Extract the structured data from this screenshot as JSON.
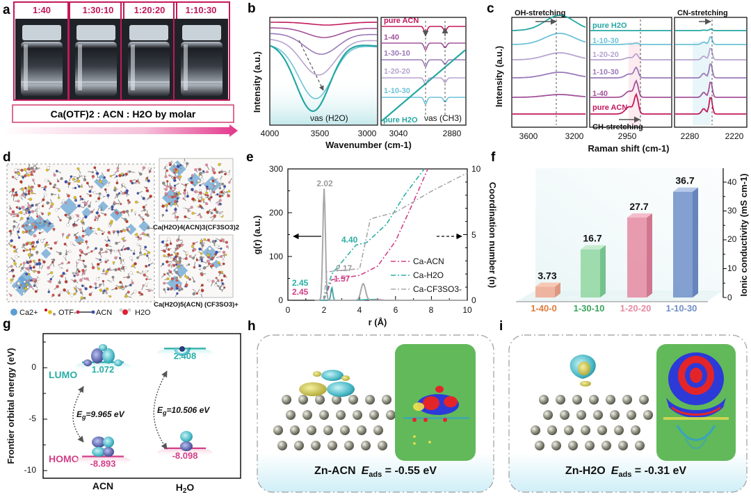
{
  "panels": {
    "a": {
      "label": "a",
      "ratios": [
        "1:40",
        "1:30:10",
        "1:20:20",
        "1:10:30"
      ],
      "caption": "Ca(OTF)2 : ACN : H2O  by molar"
    },
    "b": {
      "label": "b",
      "ylabel": "Intensity (a.u.)",
      "xlabel": "Wavenumber (cm-1)",
      "ticks_left": [
        "4000",
        "3500",
        "3000"
      ],
      "ticks_right": [
        "3040",
        "2880"
      ],
      "peak_left": "νas (H2O)",
      "peak_right": "νas (CH3)",
      "series": [
        "pure ACN",
        "1-40",
        "1-30-10",
        "1-20-20",
        "1-10-30",
        "pure H2O"
      ]
    },
    "c": {
      "label": "c",
      "ylabel": "Intensity (a.u.)",
      "xlabel": "Raman shift (cm-1)",
      "oh_label": "OH-stretching",
      "ch_label": "CH-stretching",
      "cn_label": "CN-stretching",
      "ticks_1": [
        "3600",
        "3200"
      ],
      "ticks_2": [
        "2950"
      ],
      "ticks_3": [
        "2280",
        "2220"
      ],
      "series": [
        "pure H2O",
        "1-10-30",
        "1-20-20",
        "1-10-30",
        "1-40",
        "pure ACN"
      ]
    },
    "d": {
      "label": "d",
      "cluster1": "Ca(H2O)4(ACN)3(CF3SO3)2",
      "cluster2": "Ca(H2O)5(ACN) (CF3SO3)+",
      "legend": [
        "Ca2+",
        "OTF-",
        "ACN",
        "H2O"
      ]
    },
    "e": {
      "label": "e",
      "xlabel": "r (Å)",
      "ylabel_left": "g(r) (a.u.)",
      "ylabel_right": "Coordination number (n)",
      "xticks": [
        "0",
        "2",
        "4",
        "6",
        "8",
        "10"
      ],
      "yticks_left": [
        "0",
        "100",
        "200",
        "300"
      ],
      "yticks_right": [
        "0",
        "5",
        "10"
      ],
      "annotations": [
        "2.02",
        "4.40",
        "2.17",
        "1.57",
        "2.45",
        "2.45"
      ],
      "legend": [
        "Ca-ACN",
        "Ca-H2O",
        "Ca-CF3SO3-"
      ]
    },
    "f": {
      "label": "f",
      "ylabel": "Ionic conductivity (mS cm-1)",
      "yticks": [
        "0",
        "10",
        "20",
        "30",
        "40"
      ]
    },
    "g": {
      "label": "g",
      "ylabel": "Frontier orbital energy (eV)",
      "yticks": [
        "0",
        "-5",
        "-10"
      ],
      "lumo": "LUMO",
      "homo": "HOMO",
      "acn_lumo": "1.072",
      "acn_homo": "-8.893",
      "h2o_lumo": "2.408",
      "h2o_homo": "-8.098",
      "eg_acn": "9.965 eV",
      "eg_h2o": "10.506 eV",
      "x_acn": "ACN",
      "x_h2o": "H2O"
    },
    "h": {
      "label": "h",
      "caption_prefix": "Zn-ACN",
      "eads": "-0.55 eV"
    },
    "i": {
      "label": "i",
      "caption_prefix": "Zn-H2O",
      "eads": "-0.31 eV"
    }
  },
  "chart_data": [
    {
      "type": "bar",
      "panel": "f",
      "categories": [
        "1-40-0",
        "1-30-10",
        "1-20-20",
        "1-10-30"
      ],
      "values": [
        3.73,
        16.7,
        27.7,
        36.7
      ],
      "ylabel": "Ionic conductivity (mS cm-1)",
      "ylim": [
        0,
        45
      ],
      "colors": [
        "#f0a890",
        "#8fd6a0",
        "#e58aa0",
        "#6f8fc8"
      ]
    },
    {
      "type": "line",
      "panel": "e",
      "xlabel": "r (Å)",
      "ylabel": "g(r) (a.u.)",
      "xlim": [
        0,
        10
      ],
      "ylim": [
        0,
        300
      ],
      "series": [
        {
          "name": "Ca-ACN",
          "x": [
            2.1,
            2.45,
            3.0,
            4.0,
            5.0,
            6.0
          ],
          "y": [
            0,
            25,
            5,
            3,
            2,
            1
          ]
        },
        {
          "name": "Ca-H2O",
          "x": [
            1.9,
            2.45,
            3.0,
            4.0,
            5.0,
            6.0
          ],
          "y": [
            0,
            30,
            5,
            3,
            2,
            1
          ]
        },
        {
          "name": "Ca-CF3SO3-",
          "x": [
            1.7,
            2.02,
            2.4,
            3.8,
            4.2,
            4.6,
            6.0
          ],
          "y": [
            0,
            255,
            0,
            0,
            38,
            0,
            0
          ]
        }
      ]
    },
    {
      "type": "line",
      "panel": "e-coordination",
      "ylabel": "Coordination number (n)",
      "ylim": [
        0,
        10
      ],
      "series": [
        {
          "name": "Ca-ACN",
          "x": [
            2.0,
            2.45,
            4.0,
            5.0,
            6.0,
            7.0,
            7.8
          ],
          "y": [
            0,
            1.57,
            1.9,
            2.6,
            4.5,
            7.5,
            10
          ]
        },
        {
          "name": "Ca-H2O",
          "x": [
            2.0,
            2.45,
            3.8,
            4.4,
            5.5,
            6.5,
            7.6
          ],
          "y": [
            0,
            2.0,
            4.2,
            4.4,
            5.8,
            8.0,
            10
          ]
        },
        {
          "name": "Ca-CF3SO3-",
          "x": [
            2.0,
            2.17,
            4.0,
            4.6,
            6.0,
            8.0,
            10
          ],
          "y": [
            0,
            2.17,
            2.4,
            6.2,
            6.7,
            8.3,
            9.7
          ]
        }
      ]
    },
    {
      "type": "bar",
      "panel": "g",
      "categories": [
        "ACN",
        "H2O"
      ],
      "series": [
        {
          "name": "LUMO",
          "values": [
            1.072,
            2.408
          ]
        },
        {
          "name": "HOMO",
          "values": [
            -8.893,
            -8.098
          ]
        }
      ],
      "ylabel": "Frontier orbital energy (eV)",
      "ylim": [
        -11,
        3
      ]
    }
  ]
}
